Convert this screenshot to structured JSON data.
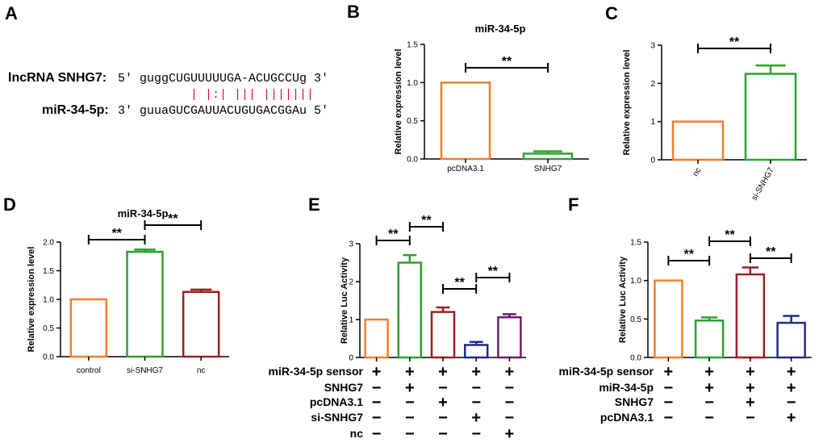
{
  "panels": {
    "A": {
      "letter": "A",
      "top_label": "lncRNA SNHG7:",
      "top_seq": "5' guggCUGUUUUUGA-ACUGCCUg 3'",
      "pairing": "| |:| ||| |||||||",
      "bottom_label": "miR-34-5p:",
      "bottom_seq": "3' guuaGUCGAUUACUGUGACGGAu 5'"
    },
    "B": {
      "letter": "B"
    },
    "C": {
      "letter": "C"
    },
    "D": {
      "letter": "D"
    },
    "E": {
      "letter": "E"
    },
    "F": {
      "letter": "F"
    }
  },
  "colors": {
    "orange": "#f47f2c",
    "green": "#2ea12f",
    "darkred": "#9c1f24",
    "navy": "#1f2c8a",
    "purple": "#6f1f6b"
  },
  "chart_data": [
    {
      "id": "B",
      "type": "bar",
      "title": "miR-34-5p",
      "ylabel": "Relative expression level",
      "categories": [
        "pcDNA3.1",
        "SNHG7"
      ],
      "values": [
        1.0,
        0.07
      ],
      "errors": [
        0,
        0.03
      ],
      "colors": [
        "orange",
        "green"
      ],
      "ylim": [
        0,
        1.5
      ],
      "yticks": [
        "0.0",
        "0.5",
        "1.0",
        "1.5"
      ],
      "significance": [
        {
          "from": 0,
          "to": 1,
          "label": "**"
        }
      ]
    },
    {
      "id": "C",
      "type": "bar",
      "title": "",
      "ylabel": "Relative expression level",
      "categories": [
        "nc",
        "si-SNHG7"
      ],
      "values": [
        1.0,
        2.25
      ],
      "errors": [
        0,
        0.22
      ],
      "colors": [
        "orange",
        "green"
      ],
      "ylim": [
        0,
        3
      ],
      "yticks": [
        "0",
        "1",
        "2",
        "3"
      ],
      "rotated_labels": true,
      "significance": [
        {
          "from": 0,
          "to": 1,
          "label": "**"
        }
      ]
    },
    {
      "id": "D",
      "type": "bar",
      "title": "miR-34-5p",
      "ylabel": "Relative expression level",
      "categories": [
        "control",
        "si-SNHG7",
        "nc"
      ],
      "values": [
        1.0,
        1.83,
        1.13
      ],
      "errors": [
        0,
        0.04,
        0.04
      ],
      "colors": [
        "orange",
        "green",
        "darkred"
      ],
      "ylim": [
        0,
        2.0
      ],
      "yticks": [
        "0.0",
        "0.5",
        "1.0",
        "1.5",
        "2.0"
      ],
      "significance": [
        {
          "from": 0,
          "to": 1,
          "label": "**"
        },
        {
          "from": 1,
          "to": 2,
          "label": "**"
        }
      ]
    },
    {
      "id": "E",
      "type": "bar",
      "title": "",
      "ylabel": "Relative Luc Activity",
      "categories": [
        "",
        "",
        "",
        "",
        ""
      ],
      "values": [
        1.0,
        2.5,
        1.2,
        0.33,
        1.06
      ],
      "errors": [
        0,
        0.2,
        0.12,
        0.08,
        0.08
      ],
      "colors": [
        "orange",
        "green",
        "darkred",
        "navy",
        "purple"
      ],
      "ylim": [
        0,
        3
      ],
      "yticks": [
        "0",
        "1",
        "2",
        "3"
      ],
      "significance": [
        {
          "from": 0,
          "to": 1,
          "label": "**"
        },
        {
          "from": 1,
          "to": 2,
          "label": "**"
        },
        {
          "from": 2,
          "to": 3,
          "label": "**"
        },
        {
          "from": 3,
          "to": 4,
          "label": "**"
        }
      ],
      "conditions": [
        {
          "label": "miR-34-5p sensor",
          "signs": [
            "+",
            "+",
            "+",
            "+",
            "+"
          ]
        },
        {
          "label": "SNHG7",
          "signs": [
            "−",
            "+",
            "−",
            "−",
            "−"
          ]
        },
        {
          "label": "pcDNA3.1",
          "signs": [
            "−",
            "−",
            "+",
            "−",
            "−"
          ]
        },
        {
          "label": "si-SNHG7",
          "signs": [
            "−",
            "−",
            "−",
            "+",
            "−"
          ]
        },
        {
          "label": "nc",
          "signs": [
            "−",
            "−",
            "−",
            "−",
            "+"
          ]
        }
      ]
    },
    {
      "id": "F",
      "type": "bar",
      "title": "",
      "ylabel": "Relative Luc Activity",
      "categories": [
        "",
        "",
        "",
        ""
      ],
      "values": [
        1.0,
        0.48,
        1.08,
        0.45
      ],
      "errors": [
        0,
        0.04,
        0.09,
        0.09
      ],
      "colors": [
        "orange",
        "green",
        "darkred",
        "navy"
      ],
      "ylim": [
        0,
        1.5
      ],
      "yticks": [
        "0.0",
        "0.5",
        "1.0",
        "1.5"
      ],
      "significance": [
        {
          "from": 0,
          "to": 1,
          "label": "**"
        },
        {
          "from": 1,
          "to": 2,
          "label": "**"
        },
        {
          "from": 2,
          "to": 3,
          "label": "**"
        }
      ],
      "conditions": [
        {
          "label": "miR-34-5p sensor",
          "signs": [
            "+",
            "+",
            "+",
            "+"
          ]
        },
        {
          "label": "miR-34-5p",
          "signs": [
            "−",
            "+",
            "+",
            "+"
          ]
        },
        {
          "label": "SNHG7",
          "signs": [
            "−",
            "−",
            "+",
            "−"
          ]
        },
        {
          "label": "pcDNA3.1",
          "signs": [
            "−",
            "−",
            "−",
            "+"
          ]
        }
      ]
    }
  ]
}
